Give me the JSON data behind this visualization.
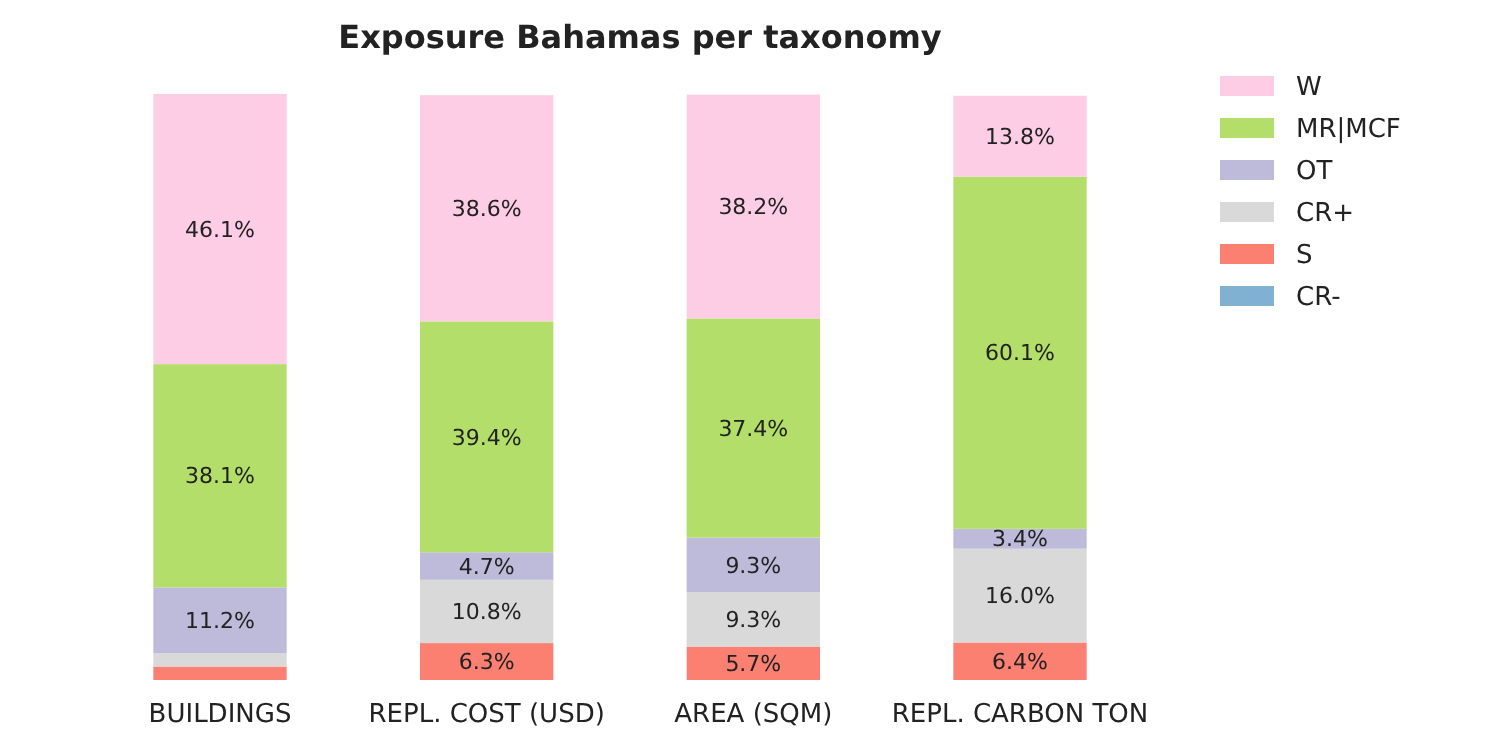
{
  "chart_data": {
    "type": "bar",
    "title": "Exposure Bahamas per taxonomy",
    "stacked": true,
    "legend": "top right",
    "categories": [
      "BUILDINGS",
      "REPL. COST (USD)",
      "AREA (SQM)",
      "REPL. CARBON TON"
    ],
    "series": [
      {
        "name": "CR-",
        "color": "#80b1d3",
        "values": [
          0,
          0,
          0,
          0
        ],
        "value_labels": [
          null,
          null,
          null,
          null
        ]
      },
      {
        "name": "S",
        "color": "#fb8072",
        "values": [
          2.3,
          6.3,
          5.7,
          6.4
        ],
        "value_labels": [
          null,
          "6.3%",
          "5.7%",
          "6.4%"
        ]
      },
      {
        "name": "CR+",
        "color": "#d9d9d9",
        "values": [
          2.3,
          10.8,
          9.3,
          16.0
        ],
        "value_labels": [
          null,
          "10.8%",
          "9.3%",
          "16.0%"
        ]
      },
      {
        "name": "OT",
        "color": "#bebada",
        "values": [
          11.2,
          4.7,
          9.3,
          3.4
        ],
        "value_labels": [
          "11.2%",
          "4.7%",
          "9.3%",
          "3.4%"
        ]
      },
      {
        "name": "MR|MCF",
        "color": "#b3de69",
        "values": [
          38.1,
          39.4,
          37.4,
          60.1
        ],
        "value_labels": [
          "38.1%",
          "39.4%",
          "37.4%",
          "60.1%"
        ]
      },
      {
        "name": "W",
        "color": "#fccde5",
        "values": [
          46.1,
          38.6,
          38.2,
          13.8
        ],
        "value_labels": [
          "46.1%",
          "38.6%",
          "38.2%",
          "13.8%"
        ]
      }
    ]
  }
}
